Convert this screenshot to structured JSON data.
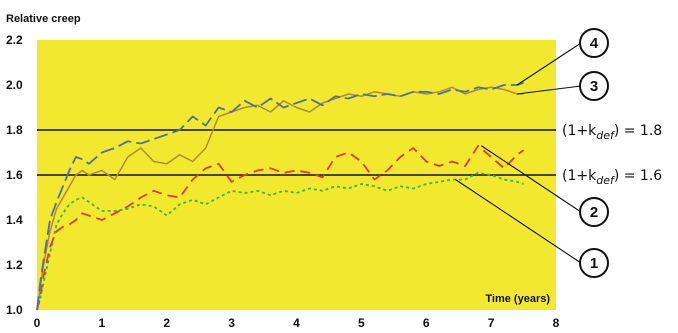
{
  "chart_data": {
    "type": "line",
    "ylabel": "Relative creep",
    "xlabel": "Time (years)",
    "xlim": [
      0,
      8
    ],
    "ylim": [
      1.0,
      2.2
    ],
    "x_ticks": [
      "0",
      "1",
      "2",
      "3",
      "4",
      "5",
      "6",
      "7",
      "8"
    ],
    "y_ticks": [
      "1.0",
      "1.2",
      "1.4",
      "1.6",
      "1.8",
      "2.0",
      "2.2"
    ],
    "colors": {
      "plot_background": "#F2E82E",
      "series_1": "#3BB54A",
      "series_2": "#E23A2E",
      "series_3": "#B08B3A",
      "series_4": "#4F6FA8",
      "reference_lines": "#111111"
    },
    "reference_lines": [
      {
        "y": 1.8,
        "label_prefix": "(1+k",
        "label_sub": "def",
        "label_suffix": ")",
        "label_value": "= 1.8"
      },
      {
        "y": 1.6,
        "label_prefix": "(1+k",
        "label_sub": "def",
        "label_suffix": ")",
        "label_value": "= 1.6"
      }
    ],
    "series": [
      {
        "id": "1",
        "points": [
          [
            0,
            1.0
          ],
          [
            0.05,
            1.05
          ],
          [
            0.1,
            1.12
          ],
          [
            0.2,
            1.25
          ],
          [
            0.3,
            1.38
          ],
          [
            0.4,
            1.43
          ],
          [
            0.5,
            1.47
          ],
          [
            0.6,
            1.49
          ],
          [
            0.7,
            1.5
          ],
          [
            0.8,
            1.48
          ],
          [
            1.0,
            1.44
          ],
          [
            1.2,
            1.44
          ],
          [
            1.4,
            1.45
          ],
          [
            1.6,
            1.47
          ],
          [
            1.8,
            1.46
          ],
          [
            2.0,
            1.42
          ],
          [
            2.2,
            1.47
          ],
          [
            2.4,
            1.49
          ],
          [
            2.6,
            1.47
          ],
          [
            2.8,
            1.5
          ],
          [
            3.0,
            1.53
          ],
          [
            3.2,
            1.52
          ],
          [
            3.4,
            1.53
          ],
          [
            3.6,
            1.51
          ],
          [
            3.8,
            1.53
          ],
          [
            4.0,
            1.52
          ],
          [
            4.2,
            1.54
          ],
          [
            4.4,
            1.53
          ],
          [
            4.6,
            1.55
          ],
          [
            4.8,
            1.54
          ],
          [
            5.0,
            1.56
          ],
          [
            5.2,
            1.55
          ],
          [
            5.4,
            1.53
          ],
          [
            5.6,
            1.55
          ],
          [
            5.8,
            1.54
          ],
          [
            6.0,
            1.56
          ],
          [
            6.2,
            1.57
          ],
          [
            6.4,
            1.58
          ],
          [
            6.6,
            1.58
          ],
          [
            6.8,
            1.61
          ],
          [
            7.0,
            1.6
          ],
          [
            7.2,
            1.58
          ],
          [
            7.4,
            1.57
          ],
          [
            7.5,
            1.56
          ]
        ]
      },
      {
        "id": "2",
        "points": [
          [
            0,
            1.0
          ],
          [
            0.05,
            1.06
          ],
          [
            0.1,
            1.15
          ],
          [
            0.2,
            1.28
          ],
          [
            0.3,
            1.35
          ],
          [
            0.4,
            1.37
          ],
          [
            0.5,
            1.38
          ],
          [
            0.6,
            1.4
          ],
          [
            0.7,
            1.43
          ],
          [
            0.8,
            1.42
          ],
          [
            1.0,
            1.4
          ],
          [
            1.2,
            1.43
          ],
          [
            1.4,
            1.46
          ],
          [
            1.6,
            1.5
          ],
          [
            1.8,
            1.53
          ],
          [
            2.0,
            1.51
          ],
          [
            2.2,
            1.5
          ],
          [
            2.4,
            1.58
          ],
          [
            2.6,
            1.63
          ],
          [
            2.8,
            1.65
          ],
          [
            3.0,
            1.57
          ],
          [
            3.2,
            1.6
          ],
          [
            3.4,
            1.62
          ],
          [
            3.6,
            1.63
          ],
          [
            3.8,
            1.61
          ],
          [
            4.0,
            1.62
          ],
          [
            4.2,
            1.61
          ],
          [
            4.4,
            1.59
          ],
          [
            4.6,
            1.68
          ],
          [
            4.8,
            1.7
          ],
          [
            5.0,
            1.66
          ],
          [
            5.2,
            1.58
          ],
          [
            5.4,
            1.62
          ],
          [
            5.6,
            1.68
          ],
          [
            5.8,
            1.72
          ],
          [
            6.0,
            1.66
          ],
          [
            6.2,
            1.64
          ],
          [
            6.4,
            1.66
          ],
          [
            6.6,
            1.64
          ],
          [
            6.8,
            1.73
          ],
          [
            7.0,
            1.68
          ],
          [
            7.2,
            1.63
          ],
          [
            7.4,
            1.69
          ],
          [
            7.5,
            1.71
          ]
        ]
      },
      {
        "id": "3",
        "points": [
          [
            0,
            1.0
          ],
          [
            0.05,
            1.1
          ],
          [
            0.1,
            1.2
          ],
          [
            0.2,
            1.35
          ],
          [
            0.3,
            1.45
          ],
          [
            0.4,
            1.5
          ],
          [
            0.5,
            1.55
          ],
          [
            0.6,
            1.6
          ],
          [
            0.7,
            1.62
          ],
          [
            0.8,
            1.6
          ],
          [
            1.0,
            1.62
          ],
          [
            1.2,
            1.58
          ],
          [
            1.4,
            1.68
          ],
          [
            1.6,
            1.72
          ],
          [
            1.8,
            1.66
          ],
          [
            2.0,
            1.65
          ],
          [
            2.2,
            1.69
          ],
          [
            2.4,
            1.66
          ],
          [
            2.6,
            1.72
          ],
          [
            2.8,
            1.86
          ],
          [
            3.0,
            1.88
          ],
          [
            3.2,
            1.9
          ],
          [
            3.4,
            1.91
          ],
          [
            3.6,
            1.88
          ],
          [
            3.8,
            1.93
          ],
          [
            4.0,
            1.9
          ],
          [
            4.2,
            1.88
          ],
          [
            4.4,
            1.92
          ],
          [
            4.6,
            1.94
          ],
          [
            4.8,
            1.96
          ],
          [
            5.0,
            1.95
          ],
          [
            5.2,
            1.97
          ],
          [
            5.4,
            1.96
          ],
          [
            5.6,
            1.95
          ],
          [
            5.8,
            1.97
          ],
          [
            6.0,
            1.96
          ],
          [
            6.2,
            1.97
          ],
          [
            6.4,
            1.99
          ],
          [
            6.6,
            1.96
          ],
          [
            6.8,
            1.98
          ],
          [
            7.0,
            1.99
          ],
          [
            7.2,
            1.98
          ],
          [
            7.4,
            1.96
          ],
          [
            7.5,
            1.96
          ]
        ]
      },
      {
        "id": "4",
        "points": [
          [
            0,
            1.0
          ],
          [
            0.05,
            1.12
          ],
          [
            0.1,
            1.22
          ],
          [
            0.2,
            1.4
          ],
          [
            0.3,
            1.48
          ],
          [
            0.4,
            1.55
          ],
          [
            0.5,
            1.62
          ],
          [
            0.6,
            1.68
          ],
          [
            0.7,
            1.67
          ],
          [
            0.8,
            1.65
          ],
          [
            1.0,
            1.7
          ],
          [
            1.2,
            1.72
          ],
          [
            1.4,
            1.75
          ],
          [
            1.6,
            1.74
          ],
          [
            1.8,
            1.76
          ],
          [
            2.0,
            1.78
          ],
          [
            2.2,
            1.8
          ],
          [
            2.4,
            1.86
          ],
          [
            2.6,
            1.82
          ],
          [
            2.8,
            1.9
          ],
          [
            3.0,
            1.88
          ],
          [
            3.2,
            1.93
          ],
          [
            3.4,
            1.9
          ],
          [
            3.6,
            1.94
          ],
          [
            3.8,
            1.9
          ],
          [
            4.0,
            1.92
          ],
          [
            4.2,
            1.94
          ],
          [
            4.4,
            1.91
          ],
          [
            4.6,
            1.95
          ],
          [
            4.8,
            1.94
          ],
          [
            5.0,
            1.96
          ],
          [
            5.2,
            1.95
          ],
          [
            5.4,
            1.96
          ],
          [
            5.6,
            1.95
          ],
          [
            5.8,
            1.97
          ],
          [
            6.0,
            1.97
          ],
          [
            6.2,
            1.96
          ],
          [
            6.4,
            1.98
          ],
          [
            6.6,
            1.97
          ],
          [
            6.8,
            1.99
          ],
          [
            7.0,
            1.98
          ],
          [
            7.2,
            2.0
          ],
          [
            7.4,
            2.0
          ],
          [
            7.5,
            2.01
          ]
        ]
      }
    ]
  }
}
